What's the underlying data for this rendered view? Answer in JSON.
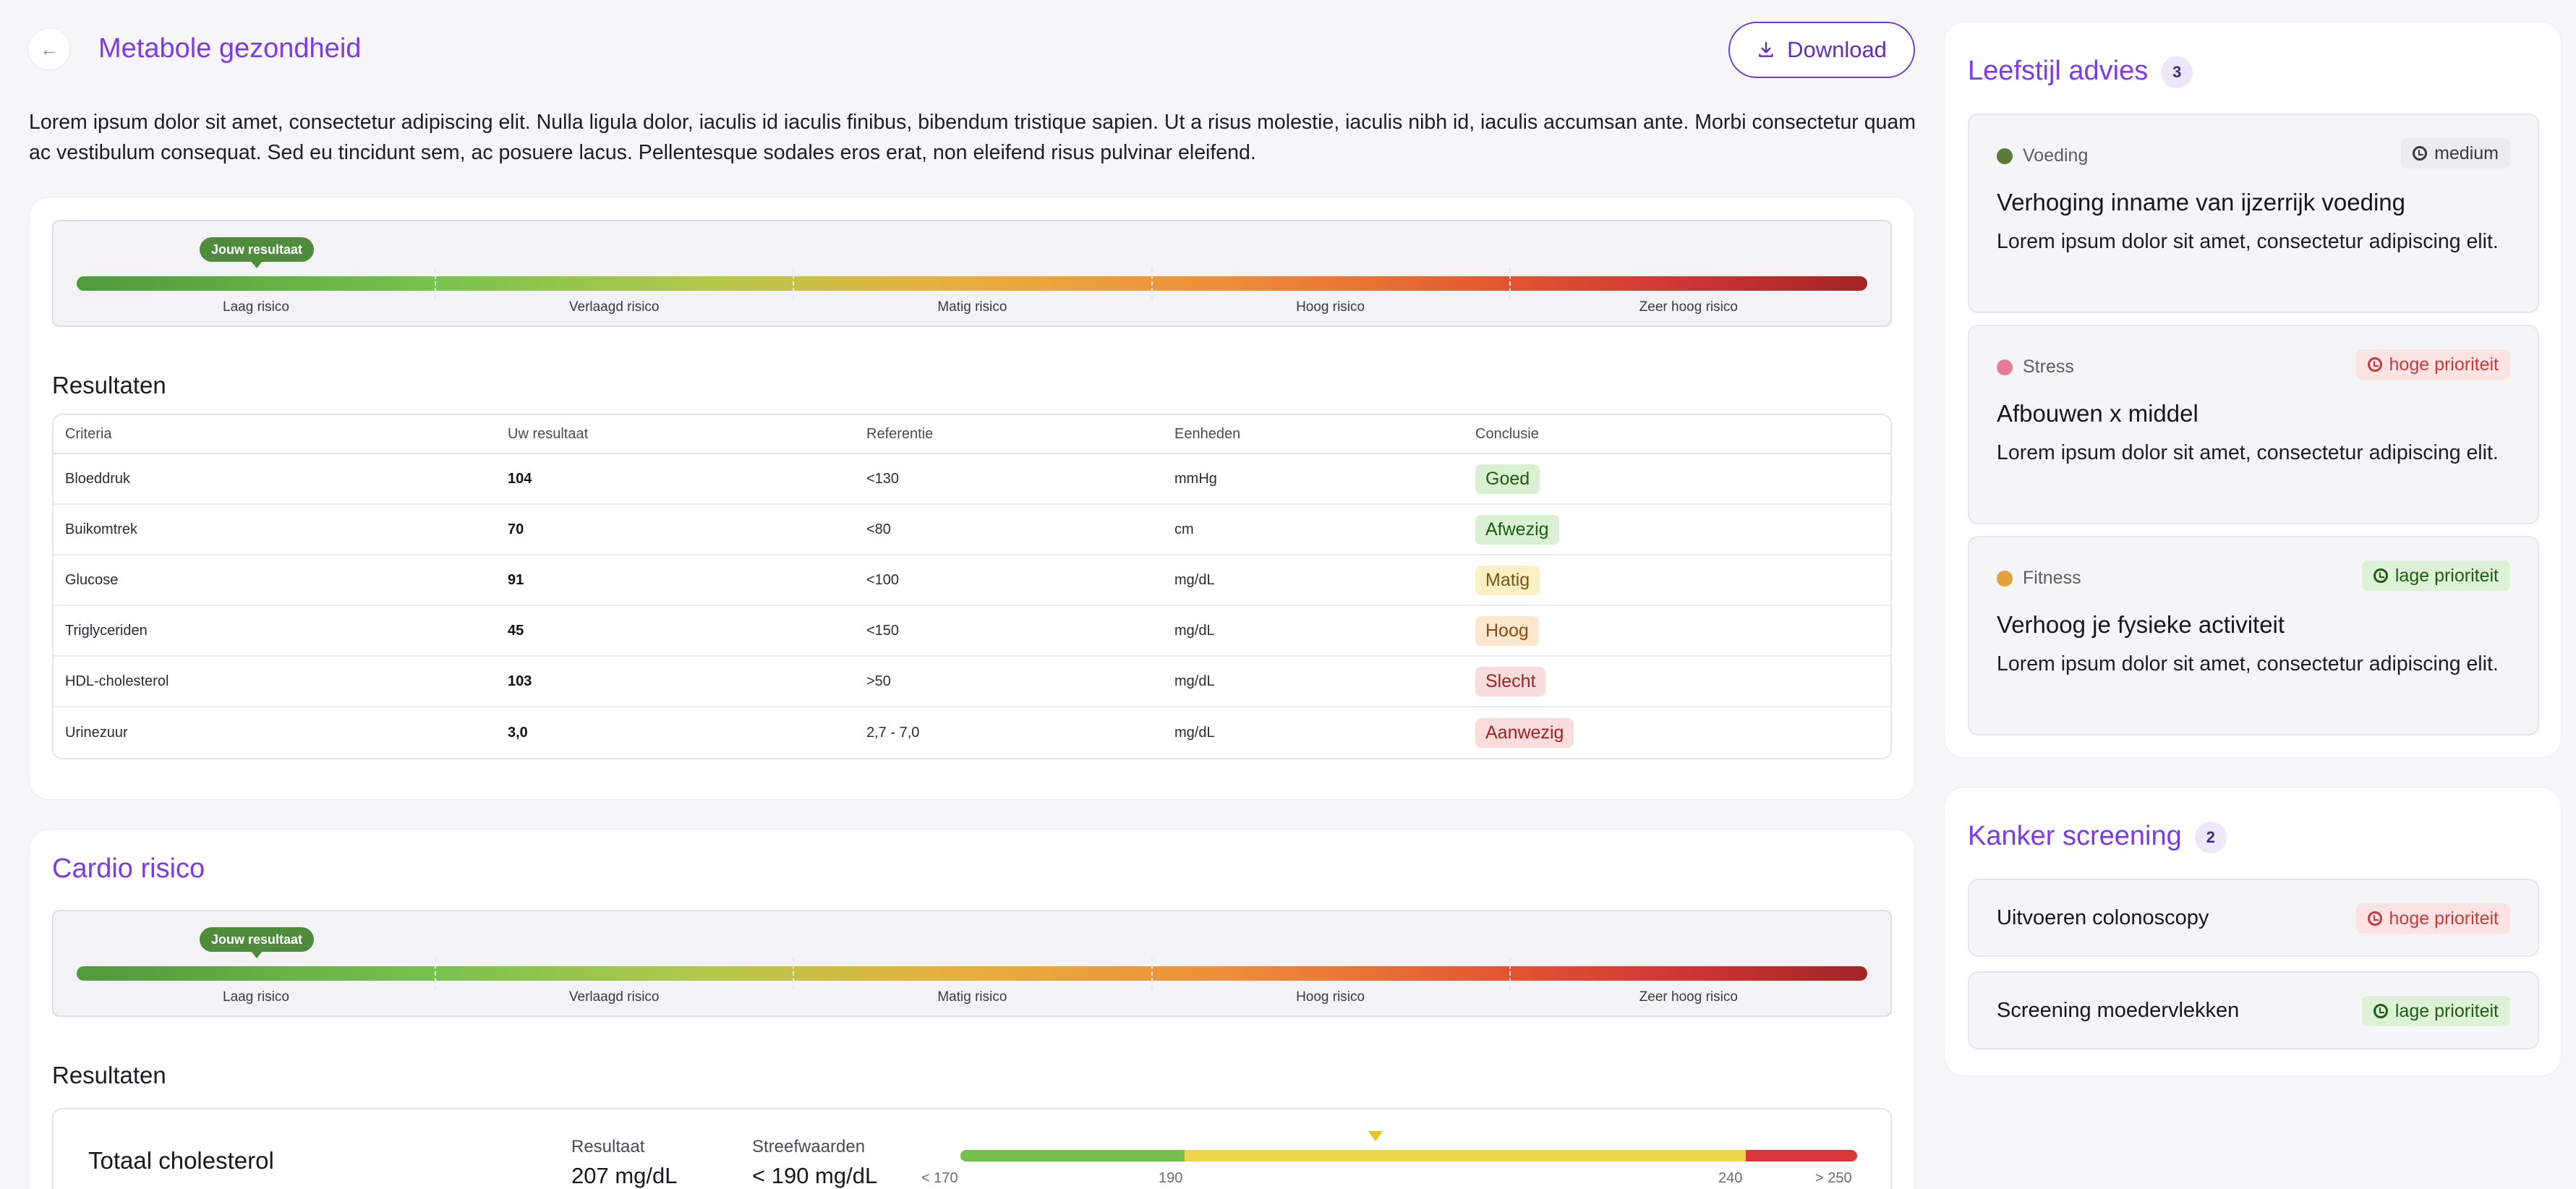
{
  "header": {
    "back_icon": "arrow-left-icon",
    "title": "Metabole gezondheid",
    "download_label": "Download",
    "download_icon": "download-icon",
    "intro": "Lorem ipsum dolor sit amet, consectetur adipiscing elit. Nulla ligula dolor, iaculis id iaculis finibus, bibendum tristique sapien. Ut a risus molestie, iaculis nibh id, iaculis accumsan ante. Morbi consectetur quam ac vestibulum consequat. Sed eu tincidunt sem, ac posuere lacus. Pellentesque sodales eros erat, non eleifend risus pulvinar eleifend."
  },
  "risk_scale": {
    "marker": "Jouw resultaat",
    "levels": [
      "Laag risico",
      "Verlaagd risico",
      "Matig risico",
      "Hoog risico",
      "Zeer hoog risico"
    ]
  },
  "metabolic": {
    "results_title": "Resultaten",
    "columns": [
      "Criteria",
      "Uw resultaat",
      "Referentie",
      "Eenheden",
      "Conclusie"
    ],
    "rows": [
      {
        "criteria": "Bloeddruk",
        "result": "104",
        "reference": "<130",
        "unit": "mmHg",
        "conclusion": "Goed",
        "bg": "#d9f0d3",
        "fg": "#1f5c16"
      },
      {
        "criteria": "Buikomtrek",
        "result": "70",
        "reference": "<80",
        "unit": "cm",
        "conclusion": "Afwezig",
        "bg": "#d9f0d3",
        "fg": "#1f5c16"
      },
      {
        "criteria": "Glucose",
        "result": "91",
        "reference": "<100",
        "unit": "mg/dL",
        "conclusion": "Matig",
        "bg": "#fbf0c4",
        "fg": "#7a5410"
      },
      {
        "criteria": "Triglyceriden",
        "result": "45",
        "reference": "<150",
        "unit": "mg/dL",
        "conclusion": "Hoog",
        "bg": "#fde8cf",
        "fg": "#8a4a10"
      },
      {
        "criteria": "HDL-cholesterol",
        "result": "103",
        "reference": ">50",
        "unit": "mg/dL",
        "conclusion": "Slecht",
        "bg": "#f9dcdc",
        "fg": "#9b2424"
      },
      {
        "criteria": "Urinezuur",
        "result": "3,0",
        "reference": "2,7 - 7,0",
        "unit": "mg/dL",
        "conclusion": "Aanwezig",
        "bg": "#f9dcdc",
        "fg": "#9b2424"
      }
    ]
  },
  "cardio": {
    "title": "Cardio risico",
    "results_title": "Resultaten",
    "cholesterol": {
      "name": "Totaal cholesterol",
      "result_label": "Resultaat",
      "result_value": "207 mg/dL",
      "target_label": "Streefwaarden",
      "target_value": "< 190 mg/dL",
      "ticks": [
        "< 170",
        "190",
        "240",
        "> 250"
      ],
      "value": 207
    }
  },
  "lifestyle": {
    "title": "Leefstijl advies",
    "count": "3",
    "items": [
      {
        "category": "Voeding",
        "icon": "food-icon",
        "icon_color": "#5a7a3a",
        "priority": "medium",
        "prio_bg": "#ececef",
        "prio_fg": "#3a3a44",
        "title": "Verhoging inname van ijzerrijk voeding",
        "text": "Lorem ipsum dolor sit amet, consectetur adipiscing elit."
      },
      {
        "category": "Stress",
        "icon": "brain-icon",
        "icon_color": "#e67c9a",
        "priority": "hoge prioriteit",
        "prio_bg": "#fbe3e3",
        "prio_fg": "#c93a3a",
        "title": "Afbouwen x middel",
        "text": "Lorem ipsum dolor sit amet, consectetur adipiscing elit."
      },
      {
        "category": "Fitness",
        "icon": "runner-icon",
        "icon_color": "#e2a23a",
        "priority": "lage prioriteit",
        "prio_bg": "#dcf1d6",
        "prio_fg": "#1f5c16",
        "title": "Verhoog je fysieke activiteit",
        "text": "Lorem ipsum dolor sit amet, consectetur adipiscing elit."
      }
    ]
  },
  "screening": {
    "title": "Kanker screening",
    "count": "2",
    "items": [
      {
        "title": "Uitvoeren colonoscopy",
        "priority": "hoge prioriteit",
        "prio_bg": "#fbe3e3",
        "prio_fg": "#c93a3a"
      },
      {
        "title": "Screening moedervlekken",
        "priority": "lage prioriteit",
        "prio_bg": "#dcf1d6",
        "prio_fg": "#1f5c16"
      }
    ]
  }
}
